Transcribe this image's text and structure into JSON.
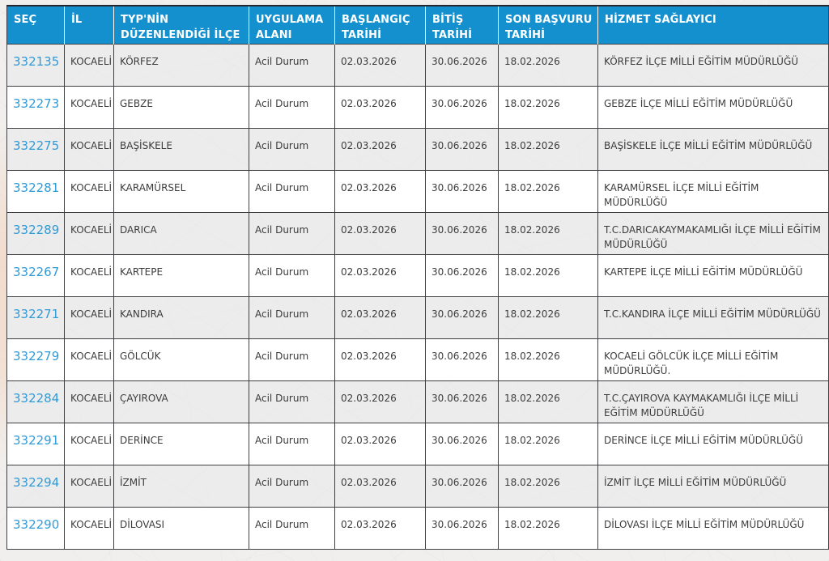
{
  "colors": {
    "header_bg": "#1590ce",
    "header_text": "#ffffff",
    "link": "#2f9bd8",
    "cell_text": "#3c3c3c",
    "border": "#3f3f44",
    "stripe_row": "#e9e9eb",
    "page_bg": "#f1efed"
  },
  "table": {
    "columns": [
      {
        "key": "sec",
        "label": "SEÇ"
      },
      {
        "key": "il",
        "label": "İL"
      },
      {
        "key": "ilce",
        "label": "TYP'NİN DÜZENLENDİĞİ İLÇE"
      },
      {
        "key": "uygulama",
        "label": "UYGULAMA ALANI"
      },
      {
        "key": "baslangic",
        "label": "BAŞLANGIÇ TARİHİ"
      },
      {
        "key": "bitis",
        "label": "BİTİŞ TARİHİ"
      },
      {
        "key": "son_basvuru",
        "label": "SON BAŞVURU TARİHİ"
      },
      {
        "key": "hizmet",
        "label": "HİZMET SAĞLAYICI"
      }
    ],
    "rows": [
      {
        "sec": "332135",
        "il": "KOCAELİ",
        "ilce": "KÖRFEZ",
        "uygulama": "Acil Durum",
        "baslangic": "02.03.2026",
        "bitis": "30.06.2026",
        "son_basvuru": "18.02.2026",
        "hizmet": "KÖRFEZ İLÇE MİLLİ EĞİTİM MÜDÜRLÜĞÜ"
      },
      {
        "sec": "332273",
        "il": "KOCAELİ",
        "ilce": "GEBZE",
        "uygulama": "Acil Durum",
        "baslangic": "02.03.2026",
        "bitis": "30.06.2026",
        "son_basvuru": "18.02.2026",
        "hizmet": "GEBZE İLÇE MİLLİ EĞİTİM MÜDÜRLÜĞÜ"
      },
      {
        "sec": "332275",
        "il": "KOCAELİ",
        "ilce": "BAŞİSKELE",
        "uygulama": "Acil Durum",
        "baslangic": "02.03.2026",
        "bitis": "30.06.2026",
        "son_basvuru": "18.02.2026",
        "hizmet": "BAŞİSKELE İLÇE MİLLİ EĞİTİM MÜDÜRLÜĞÜ"
      },
      {
        "sec": "332281",
        "il": "KOCAELİ",
        "ilce": "KARAMÜRSEL",
        "uygulama": "Acil Durum",
        "baslangic": "02.03.2026",
        "bitis": "30.06.2026",
        "son_basvuru": "18.02.2026",
        "hizmet": "KARAMÜRSEL İLÇE MİLLİ EĞİTİM MÜDÜRLÜĞÜ"
      },
      {
        "sec": "332289",
        "il": "KOCAELİ",
        "ilce": "DARICA",
        "uygulama": "Acil Durum",
        "baslangic": "02.03.2026",
        "bitis": "30.06.2026",
        "son_basvuru": "18.02.2026",
        "hizmet": "T.C.DARICAKAYMAKAMLIĞI İLÇE MİLLİ EĞİTİM MÜDÜRLÜĞÜ"
      },
      {
        "sec": "332267",
        "il": "KOCAELİ",
        "ilce": "KARTEPE",
        "uygulama": "Acil Durum",
        "baslangic": "02.03.2026",
        "bitis": "30.06.2026",
        "son_basvuru": "18.02.2026",
        "hizmet": "KARTEPE İLÇE MİLLİ EĞİTİM MÜDÜRLÜĞÜ"
      },
      {
        "sec": "332271",
        "il": "KOCAELİ",
        "ilce": "KANDIRA",
        "uygulama": "Acil Durum",
        "baslangic": "02.03.2026",
        "bitis": "30.06.2026",
        "son_basvuru": "18.02.2026",
        "hizmet": "T.C.KANDIRA İLÇE MİLLİ EĞİTİM MÜDÜRLÜĞÜ"
      },
      {
        "sec": "332279",
        "il": "KOCAELİ",
        "ilce": "GÖLCÜK",
        "uygulama": "Acil Durum",
        "baslangic": "02.03.2026",
        "bitis": "30.06.2026",
        "son_basvuru": "18.02.2026",
        "hizmet": "KOCAELİ GÖLCÜK İLÇE MİLLİ EĞİTİM MÜDÜRLÜĞÜ."
      },
      {
        "sec": "332284",
        "il": "KOCAELİ",
        "ilce": "ÇAYIROVA",
        "uygulama": "Acil Durum",
        "baslangic": "02.03.2026",
        "bitis": "30.06.2026",
        "son_basvuru": "18.02.2026",
        "hizmet": "T.C.ÇAYIROVA KAYMAKAMLIĞI İLÇE MİLLİ EĞİTİM MÜDÜRLÜĞÜ"
      },
      {
        "sec": "332291",
        "il": "KOCAELİ",
        "ilce": "DERİNCE",
        "uygulama": "Acil Durum",
        "baslangic": "02.03.2026",
        "bitis": "30.06.2026",
        "son_basvuru": "18.02.2026",
        "hizmet": "DERİNCE İLÇE MİLLİ EĞİTİM MÜDÜRLÜĞÜ"
      },
      {
        "sec": "332294",
        "il": "KOCAELİ",
        "ilce": "İZMİT",
        "uygulama": "Acil Durum",
        "baslangic": "02.03.2026",
        "bitis": "30.06.2026",
        "son_basvuru": "18.02.2026",
        "hizmet": "İZMİT İLÇE MİLLİ EĞİTİM MÜDÜRLÜĞÜ"
      },
      {
        "sec": "332290",
        "il": "KOCAELİ",
        "ilce": "DİLOVASI",
        "uygulama": "Acil Durum",
        "baslangic": "02.03.2026",
        "bitis": "30.06.2026",
        "son_basvuru": "18.02.2026",
        "hizmet": "DİLOVASI İLÇE MİLLİ EĞİTİM MÜDÜRLÜĞÜ"
      }
    ]
  }
}
